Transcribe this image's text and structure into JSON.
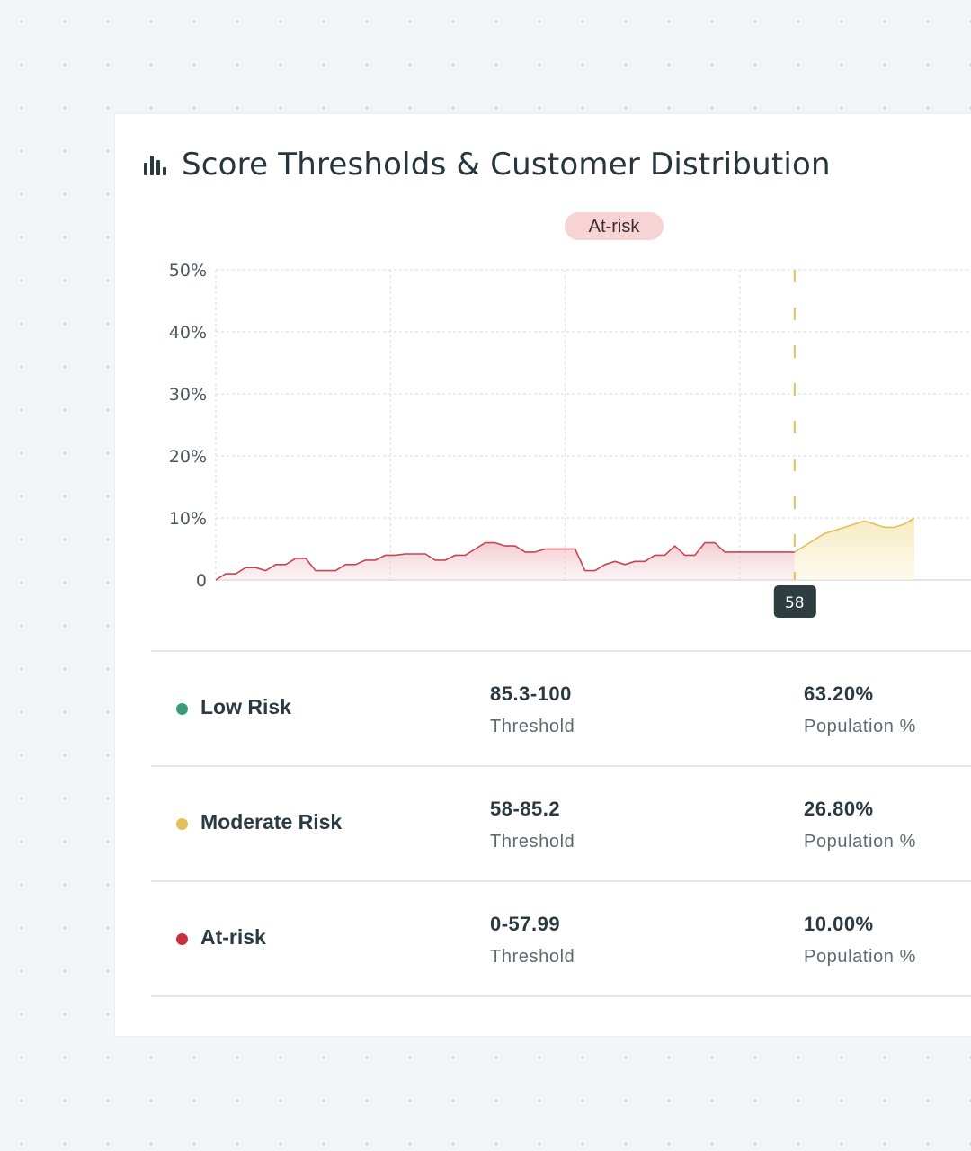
{
  "card": {
    "title": "Score Thresholds & Customer Distribution",
    "icon": "bar-chart-icon"
  },
  "chart_data": {
    "type": "area",
    "title": "",
    "badge": "At-risk",
    "threshold_marker": {
      "x": 58,
      "label": "58"
    },
    "y_axis": {
      "ticks": [
        "50%",
        "40%",
        "30%",
        "20%",
        "10%",
        "0"
      ],
      "ylim": [
        0,
        50
      ],
      "grid": true
    },
    "x_axis": {
      "xlim": [
        0,
        70
      ]
    },
    "series": [
      {
        "segment": "at-risk",
        "color": "#c94452",
        "x": [
          0,
          1,
          2,
          3,
          4,
          5,
          6,
          7,
          8,
          9,
          10,
          11,
          12,
          13,
          14,
          15,
          16,
          17,
          18,
          19,
          20,
          21,
          22,
          23,
          24,
          25,
          26,
          27,
          28,
          29,
          30,
          31,
          32,
          33,
          34,
          35,
          36,
          37,
          38,
          39,
          40,
          41,
          42,
          43,
          44,
          45,
          46,
          47,
          48,
          49,
          50,
          51,
          52,
          53,
          54,
          55,
          56,
          57,
          58
        ],
        "values": [
          0,
          1,
          1,
          2,
          2,
          1.5,
          2.5,
          2.5,
          3.5,
          3.5,
          1.5,
          1.5,
          1.5,
          2.5,
          2.5,
          3.2,
          3.2,
          4,
          4,
          4.2,
          4.2,
          4.2,
          3.2,
          3.2,
          4,
          4,
          5,
          6,
          6,
          5.5,
          5.5,
          4.5,
          4.5,
          5,
          5,
          5,
          5,
          1.5,
          1.5,
          2.5,
          3,
          2.5,
          3,
          3,
          4,
          4,
          5.5,
          4,
          4,
          6,
          6,
          4.5,
          4.5,
          4.5,
          4.5,
          4.5,
          4.5,
          4.5,
          4.5
        ]
      },
      {
        "segment": "moderate-risk",
        "color": "#e2c05a",
        "x": [
          58,
          59,
          60,
          61,
          62,
          63,
          64,
          65,
          66,
          67,
          68,
          69,
          70
        ],
        "values": [
          4.5,
          5.5,
          6.5,
          7.5,
          8,
          8.5,
          9,
          9.5,
          9,
          8.5,
          8.5,
          9,
          10
        ]
      }
    ]
  },
  "segments": [
    {
      "name": "Low Risk",
      "color": "#3a9b7a",
      "threshold": "85.3-100",
      "threshold_label": "Threshold",
      "population": "63.20%",
      "population_label": "Population %"
    },
    {
      "name": "Moderate Risk",
      "color": "#e2c05a",
      "threshold": "58-85.2",
      "threshold_label": "Threshold",
      "population": "26.80%",
      "population_label": "Population %"
    },
    {
      "name": "At-risk",
      "color": "#c9303f",
      "threshold": "0-57.99",
      "threshold_label": "Threshold",
      "population": "10.00%",
      "population_label": "Population %"
    }
  ]
}
